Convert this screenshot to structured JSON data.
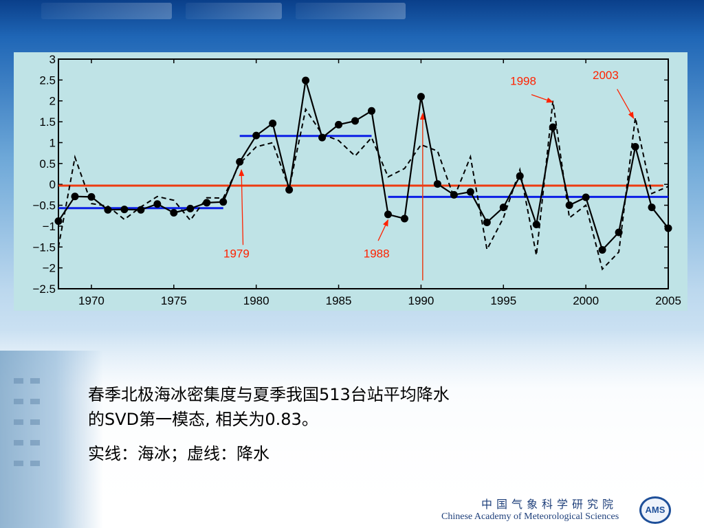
{
  "chart_data": {
    "type": "line",
    "title": "",
    "xlabel": "",
    "ylabel": "",
    "xlim": [
      1968,
      2005
    ],
    "ylim": [
      -2.5,
      3
    ],
    "x_ticks": [
      1970,
      1975,
      1980,
      1985,
      1990,
      1995,
      2000,
      2005
    ],
    "y_ticks": [
      3,
      2.5,
      2,
      1.5,
      1,
      0.5,
      0,
      -0.5,
      -1,
      -1.5,
      -2,
      -2.5
    ],
    "y_tick_labels": [
      "3",
      "2.5",
      "2",
      "1.5",
      "1",
      "0.5",
      "0",
      "−0.5",
      "−1",
      "−1.5",
      "−2",
      "−2.5"
    ],
    "grid": false,
    "series": [
      {
        "style": "solid-markers",
        "color": "#000000",
        "x": [
          1968,
          1969,
          1970,
          1971,
          1972,
          1973,
          1974,
          1975,
          1976,
          1977,
          1978,
          1979,
          1980,
          1981,
          1982,
          1983,
          1984,
          1985,
          1986,
          1987,
          1988,
          1989,
          1990,
          1991,
          1992,
          1993,
          1994,
          1995,
          1996,
          1997,
          1998,
          1999,
          2000,
          2001,
          2002,
          2003,
          2004,
          2005
        ],
        "values": [
          -0.88,
          -0.29,
          -0.3,
          -0.61,
          -0.6,
          -0.61,
          -0.47,
          -0.68,
          -0.58,
          -0.44,
          -0.42,
          0.54,
          1.17,
          1.46,
          -0.13,
          2.49,
          1.12,
          1.43,
          1.52,
          1.76,
          -0.72,
          -0.82,
          2.1,
          0.01,
          -0.25,
          -0.18,
          -0.91,
          -0.55,
          0.2,
          -0.96,
          1.37,
          -0.5,
          -0.31,
          -1.57,
          -1.15,
          0.9,
          -0.55,
          -1.05
        ]
      },
      {
        "style": "dashed",
        "color": "#000000",
        "x": [
          1968,
          1969,
          1970,
          1971,
          1972,
          1973,
          1974,
          1975,
          1976,
          1977,
          1978,
          1979,
          1980,
          1981,
          1982,
          1983,
          1984,
          1985,
          1986,
          1987,
          1988,
          1989,
          1990,
          1991,
          1992,
          1993,
          1994,
          1995,
          1996,
          1997,
          1998,
          1999,
          2000,
          2001,
          2002,
          2003,
          2004,
          2005
        ],
        "values": [
          -1.5,
          0.65,
          -0.46,
          -0.52,
          -0.84,
          -0.54,
          -0.29,
          -0.38,
          -0.86,
          -0.32,
          -0.33,
          0.5,
          0.9,
          1.0,
          -0.1,
          1.8,
          1.2,
          1.05,
          0.68,
          1.12,
          0.18,
          0.38,
          0.95,
          0.8,
          -0.32,
          0.66,
          -1.56,
          -0.8,
          0.35,
          -1.7,
          2.0,
          -0.8,
          -0.5,
          -2.03,
          -1.62,
          1.6,
          -0.22,
          -0.05
        ]
      }
    ],
    "mean_lines": [
      {
        "color": "#0a1ee6",
        "x": [
          1968,
          1978
        ],
        "y": -0.57
      },
      {
        "color": "#0a1ee6",
        "x": [
          1979,
          1987
        ],
        "y": 1.16
      },
      {
        "color": "#0a1ee6",
        "x": [
          1988,
          2005
        ],
        "y": -0.3
      },
      {
        "color": "#ee3a10",
        "x": [
          1968,
          2004.7
        ],
        "y": -0.03
      }
    ],
    "vertical_line": {
      "color": "#e8401a",
      "x": 1990.1,
      "y": [
        -2.3,
        1.7
      ]
    },
    "annotations": [
      {
        "text": "1979",
        "color": "#ff2200",
        "label_at": [
          1978.8,
          -1.75
        ],
        "arrow_from": [
          1979.2,
          -1.45
        ],
        "arrow_to": [
          1979.1,
          0.35
        ]
      },
      {
        "text": "1988",
        "color": "#ff2200",
        "label_at": [
          1987.3,
          -1.75
        ],
        "arrow_from": [
          1987.4,
          -1.35
        ],
        "arrow_to": [
          1988.0,
          -0.85
        ]
      },
      {
        "text": "1998",
        "color": "#ff2200",
        "label_at": [
          1996.2,
          2.38
        ],
        "arrow_from": [
          1996.7,
          2.15
        ],
        "arrow_to": [
          1998.0,
          1.97
        ]
      },
      {
        "text": "2003",
        "color": "#ff2200",
        "label_at": [
          2001.2,
          2.52
        ],
        "arrow_from": [
          2001.9,
          2.28
        ],
        "arrow_to": [
          2002.9,
          1.58
        ]
      }
    ]
  },
  "caption": {
    "line1": "春季北极海冰密集度与夏季我国513台站平均降水",
    "line2": "的SVD第一模态, 相关为0.83。",
    "line3": "实线：海冰；虚线：降水"
  },
  "footer": {
    "org_cn": "中国气象科学研究院",
    "org_en": "Chinese Academy of Meteorological Sciences",
    "logo_text": "AMS"
  },
  "colors": {
    "plot_bg": "#bfe3e6",
    "blue_line": "#0a1ee6",
    "orange_line": "#ee3a10",
    "annotation": "#ff2200"
  }
}
